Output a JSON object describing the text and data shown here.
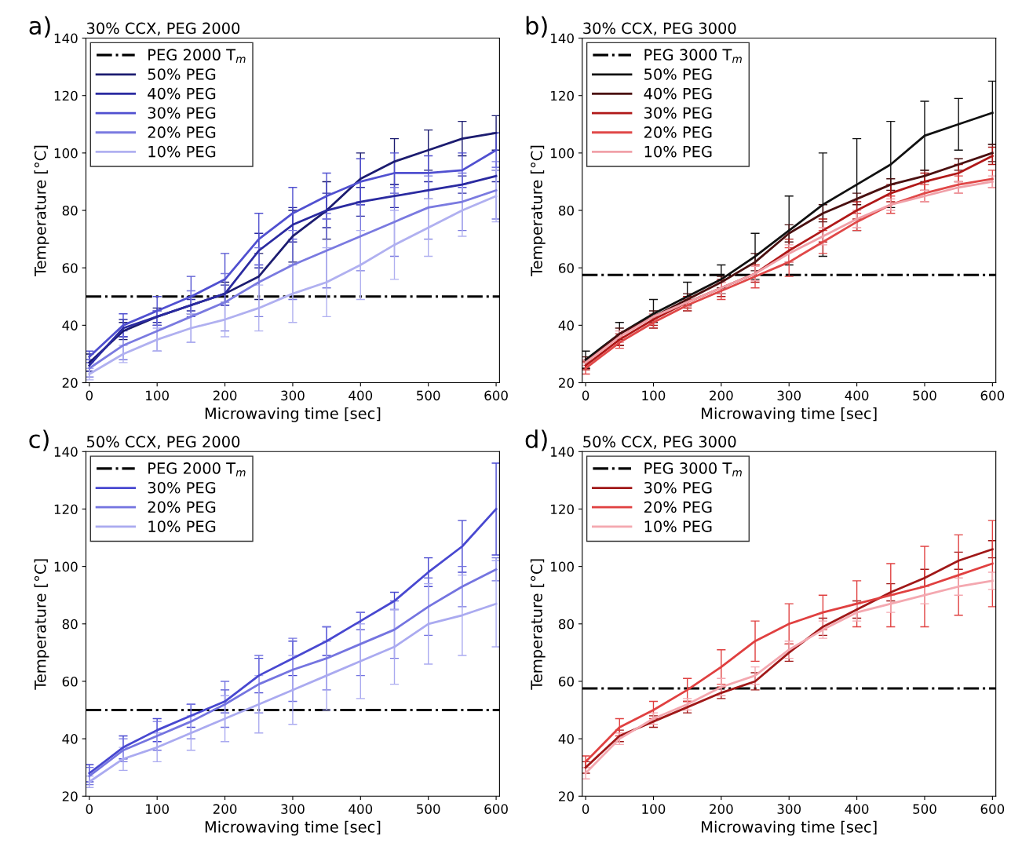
{
  "chart_data": [
    {
      "type": "line",
      "title": "30% CCX, PEG 2000",
      "xlabel": "Microwaving time [sec]",
      "ylabel": "Temperature [°C]",
      "annotations": [
        "a)"
      ],
      "x": [
        0,
        50,
        100,
        150,
        200,
        250,
        300,
        350,
        400,
        450,
        500,
        550,
        600
      ],
      "xlim": [
        -5,
        605
      ],
      "ylim": [
        20,
        140
      ],
      "xticks": [
        0,
        100,
        200,
        300,
        400,
        500,
        600
      ],
      "yticks": [
        20,
        40,
        60,
        80,
        100,
        120,
        140
      ],
      "legend": "top left",
      "line_style": "solid",
      "ref_lines": [
        {
          "axis": "y",
          "value": 50,
          "label": "PEG 2000 T$_{m}$",
          "color": "#000000",
          "line_style": "dashdot"
        }
      ],
      "series": [
        {
          "name": "50% PEG",
          "color": "#1c1c70",
          "values": [
            27,
            38,
            43,
            47,
            51,
            57,
            71,
            80,
            91,
            97,
            101,
            105,
            107
          ],
          "errors": [
            3,
            3,
            3,
            3,
            4,
            8,
            9,
            10,
            9,
            8,
            7,
            6,
            6
          ]
        },
        {
          "name": "40% PEG",
          "color": "#2a2aa0",
          "values": [
            26,
            39,
            43,
            47,
            51,
            66,
            75,
            80,
            83,
            85,
            87,
            89,
            92
          ],
          "errors": [
            2,
            3,
            2,
            2,
            3,
            6,
            6,
            6,
            5,
            4,
            3,
            3,
            2
          ]
        },
        {
          "name": "30% PEG",
          "color": "#5050d0",
          "values": [
            29,
            40,
            45,
            50,
            56,
            70,
            79,
            85,
            90,
            93,
            93,
            94,
            101
          ],
          "errors": [
            2,
            4,
            5,
            7,
            9,
            9,
            9,
            8,
            8,
            7,
            6,
            6,
            6
          ]
        },
        {
          "name": "20% PEG",
          "color": "#7a7ae0",
          "values": [
            25,
            33,
            38,
            43,
            48,
            55,
            61,
            66,
            71,
            76,
            81,
            83,
            87
          ],
          "errors": [
            3,
            5,
            7,
            9,
            10,
            12,
            12,
            13,
            12,
            12,
            11,
            10,
            10
          ]
        },
        {
          "name": "10% PEG",
          "color": "#b0b0f0",
          "values": [
            23,
            30,
            35,
            39,
            42,
            46,
            51,
            55,
            61,
            68,
            74,
            80,
            85
          ],
          "errors": [
            2,
            3,
            4,
            5,
            6,
            8,
            10,
            12,
            12,
            12,
            10,
            9,
            9
          ]
        }
      ]
    },
    {
      "type": "line",
      "title": "30% CCX, PEG 3000",
      "xlabel": "Microwaving time [sec]",
      "ylabel": "Temperature [°C]",
      "annotations": [
        "b)"
      ],
      "x": [
        0,
        50,
        100,
        150,
        200,
        250,
        300,
        350,
        400,
        450,
        500,
        550,
        600
      ],
      "xlim": [
        -5,
        605
      ],
      "ylim": [
        20,
        140
      ],
      "xticks": [
        0,
        100,
        200,
        300,
        400,
        500,
        600
      ],
      "yticks": [
        20,
        40,
        60,
        80,
        100,
        120,
        140
      ],
      "legend": "top left",
      "line_style": "solid",
      "ref_lines": [
        {
          "axis": "y",
          "value": 57.5,
          "label": "PEG 3000 T$_{m}$",
          "color": "#000000",
          "line_style": "dashdot"
        }
      ],
      "series": [
        {
          "name": "50% PEG",
          "color": "#111111",
          "values": [
            28,
            37,
            44,
            50,
            56,
            64,
            73,
            82,
            89,
            96,
            106,
            110,
            114
          ],
          "errors": [
            3,
            4,
            5,
            5,
            5,
            8,
            12,
            18,
            16,
            15,
            12,
            9,
            11
          ]
        },
        {
          "name": "40% PEG",
          "color": "#4a1010",
          "values": [
            27,
            37,
            43,
            49,
            55,
            62,
            72,
            79,
            84,
            89,
            92,
            96,
            100
          ],
          "errors": [
            2,
            2,
            2,
            2,
            2,
            3,
            3,
            3,
            2,
            2,
            2,
            2,
            3
          ]
        },
        {
          "name": "30% PEG",
          "color": "#b01818",
          "values": [
            26,
            35,
            42,
            48,
            53,
            58,
            66,
            73,
            80,
            86,
            90,
            93,
            99
          ],
          "errors": [
            1.5,
            2,
            2,
            2,
            3,
            3,
            4,
            4,
            3,
            3,
            3,
            3,
            3
          ]
        },
        {
          "name": "20% PEG",
          "color": "#e04848",
          "values": [
            25,
            34,
            41,
            47,
            52,
            57,
            62,
            69,
            76,
            82,
            86,
            89,
            91
          ],
          "errors": [
            2,
            2,
            2,
            2,
            3,
            4,
            5,
            4,
            3,
            3,
            3,
            3,
            3
          ]
        },
        {
          "name": "10% PEG",
          "color": "#f0a0a8",
          "values": [
            27,
            36,
            43,
            48,
            53,
            58,
            65,
            71,
            77,
            82,
            85,
            88,
            90
          ],
          "errors": [
            1,
            2,
            1,
            1.5,
            2,
            2.5,
            3,
            3,
            3,
            2,
            2,
            2,
            2
          ]
        }
      ]
    },
    {
      "type": "line",
      "title": "50% CCX, PEG 2000",
      "xlabel": "Microwaving time [sec]",
      "ylabel": "Temperature [°C]",
      "annotations": [
        "c)"
      ],
      "x": [
        0,
        50,
        100,
        150,
        200,
        250,
        300,
        350,
        400,
        450,
        500,
        550,
        600
      ],
      "xlim": [
        -5,
        605
      ],
      "ylim": [
        20,
        140
      ],
      "xticks": [
        0,
        100,
        200,
        300,
        400,
        500,
        600
      ],
      "yticks": [
        20,
        40,
        60,
        80,
        100,
        120,
        140
      ],
      "legend": "top left",
      "line_style": "solid",
      "ref_lines": [
        {
          "axis": "y",
          "value": 50,
          "label": "PEG 2000 T$_{m}$",
          "color": "#000000",
          "line_style": "dashdot"
        }
      ],
      "series": [
        {
          "name": "30% PEG",
          "color": "#4848d0",
          "values": [
            28,
            37,
            43,
            48,
            53,
            62,
            68,
            74,
            81,
            88,
            98,
            107,
            120
          ],
          "errors": [
            3,
            4,
            4,
            4,
            4,
            6,
            6,
            5,
            3,
            3,
            5,
            9,
            16
          ]
        },
        {
          "name": "20% PEG",
          "color": "#7474e0",
          "values": [
            27,
            36,
            41,
            46,
            52,
            59,
            64,
            68,
            73,
            78,
            86,
            93,
            99
          ],
          "errors": [
            3,
            4,
            5,
            6,
            8,
            10,
            11,
            11,
            11,
            10,
            10,
            7,
            4
          ]
        },
        {
          "name": "10% PEG",
          "color": "#aaaaf0",
          "values": [
            25,
            33,
            37,
            42,
            47,
            52,
            57,
            62,
            67,
            72,
            80,
            83,
            87
          ],
          "errors": [
            2,
            4,
            5,
            6,
            8,
            10,
            12,
            12,
            13,
            13,
            14,
            14,
            15
          ]
        }
      ]
    },
    {
      "type": "line",
      "title": "50% CCX, PEG 3000",
      "xlabel": "Microwaving time [sec]",
      "ylabel": "Temperature [°C]",
      "annotations": [
        "d)"
      ],
      "x": [
        0,
        50,
        100,
        150,
        200,
        250,
        300,
        350,
        400,
        450,
        500,
        550,
        600
      ],
      "xlim": [
        -5,
        605
      ],
      "ylim": [
        20,
        140
      ],
      "xticks": [
        0,
        100,
        200,
        300,
        400,
        500,
        600
      ],
      "yticks": [
        20,
        40,
        60,
        80,
        100,
        120,
        140
      ],
      "legend": "top left",
      "line_style": "solid",
      "ref_lines": [
        {
          "axis": "y",
          "value": 57.5,
          "label": "PEG 3000 T$_{m}$",
          "color": "#000000",
          "line_style": "dashdot"
        }
      ],
      "series": [
        {
          "name": "30% PEG",
          "color": "#a01818",
          "values": [
            30,
            41,
            46,
            51,
            56,
            60,
            70,
            79,
            85,
            91,
            96,
            102,
            106
          ],
          "errors": [
            2,
            2,
            2,
            2,
            2,
            3,
            3,
            3,
            3,
            3,
            3,
            3,
            3
          ]
        },
        {
          "name": "20% PEG",
          "color": "#e04040",
          "values": [
            32,
            44,
            50,
            57,
            65,
            74,
            80,
            84,
            87,
            90,
            93,
            97,
            101
          ],
          "errors": [
            2,
            3,
            3,
            4,
            6,
            7,
            7,
            6,
            8,
            11,
            14,
            14,
            15
          ]
        },
        {
          "name": "10% PEG",
          "color": "#f4a8b0",
          "values": [
            28,
            40,
            47,
            52,
            58,
            62,
            71,
            78,
            84,
            87,
            90,
            93,
            95
          ],
          "errors": [
            2,
            2,
            2,
            2,
            3,
            3,
            3,
            3,
            3,
            3,
            3,
            3,
            3
          ]
        }
      ]
    }
  ]
}
